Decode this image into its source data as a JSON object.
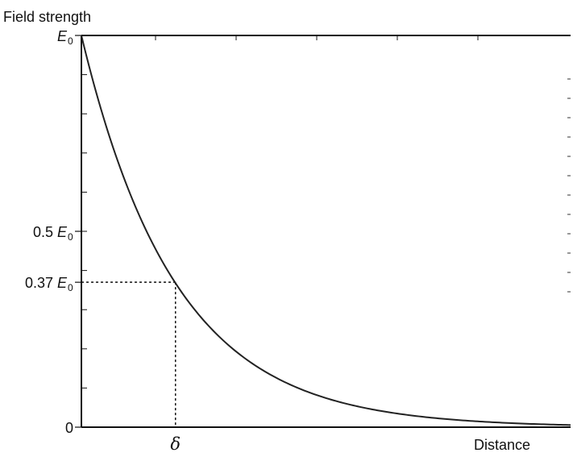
{
  "chart_data": {
    "type": "line",
    "ylabel": "Field strength",
    "xlabel": "Distance",
    "xlim": [
      0,
      5.2
    ],
    "ylim": [
      0,
      1
    ],
    "series": [
      {
        "function": "exp(-x)",
        "x": [
          0,
          0.25,
          0.5,
          0.75,
          1.0,
          1.5,
          2.0,
          2.5,
          3.0,
          3.5,
          4.0,
          4.5,
          5.0,
          5.2
        ],
        "y": [
          1.0,
          0.779,
          0.607,
          0.472,
          0.368,
          0.223,
          0.135,
          0.082,
          0.05,
          0.03,
          0.018,
          0.011,
          0.007,
          0.006
        ]
      }
    ],
    "yticks": [
      {
        "value": 1.0,
        "prefix": "",
        "symbol": "E",
        "sub": "0"
      },
      {
        "value": 0.5,
        "prefix": "0.5 ",
        "symbol": "E",
        "sub": "0"
      },
      {
        "value": 0.37,
        "prefix": "0.37 ",
        "symbol": "E",
        "sub": "0"
      },
      {
        "value": 0,
        "prefix": "0",
        "symbol": "",
        "sub": ""
      }
    ],
    "xticks": [
      {
        "value": 1.0,
        "label": "δ"
      }
    ],
    "reference_point": {
      "x": 1.0,
      "y": 0.37
    },
    "grid": false,
    "legend": "none"
  }
}
